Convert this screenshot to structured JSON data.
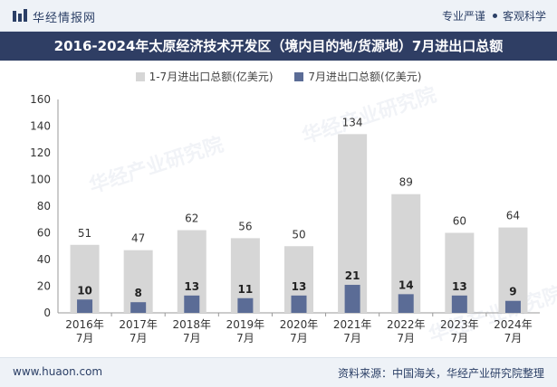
{
  "header": {
    "brand": "华经情报网",
    "tag1": "专业严谨",
    "tag2": "客观科学",
    "logo_icon": "bar-logo-icon"
  },
  "watermark": "华经产业研究院",
  "footer": {
    "site": "www.huaon.com",
    "source": "资料来源：中国海关，华经产业研究院整理"
  },
  "colors": {
    "series1": "#d6d6d6",
    "series2": "#5b6c96",
    "title_bg": "#2f3e64"
  },
  "chart_data": {
    "type": "bar",
    "title": "2016-2024年太原经济技术开发区（境内目的地/货源地）7月进出口总额",
    "categories": [
      [
        "2016年",
        "7月"
      ],
      [
        "2017年",
        "7月"
      ],
      [
        "2018年",
        "7月"
      ],
      [
        "2019年",
        "7月"
      ],
      [
        "2020年",
        "7月"
      ],
      [
        "2021年",
        "7月"
      ],
      [
        "2022年",
        "7月"
      ],
      [
        "2023年",
        "7月"
      ],
      [
        "2024年",
        "7月"
      ]
    ],
    "series": [
      {
        "name": "1-7月进出口总额(亿美元)",
        "values": [
          51,
          47,
          62,
          56,
          50,
          134,
          89,
          60,
          64
        ]
      },
      {
        "name": "7月进出口总额(亿美元)",
        "values": [
          10,
          8,
          13,
          11,
          13,
          21,
          14,
          13,
          9
        ]
      }
    ],
    "ylim": [
      0,
      160
    ],
    "yticks": [
      0,
      20,
      40,
      60,
      80,
      100,
      120,
      140,
      160
    ],
    "grid": false,
    "legend": "top-center"
  }
}
